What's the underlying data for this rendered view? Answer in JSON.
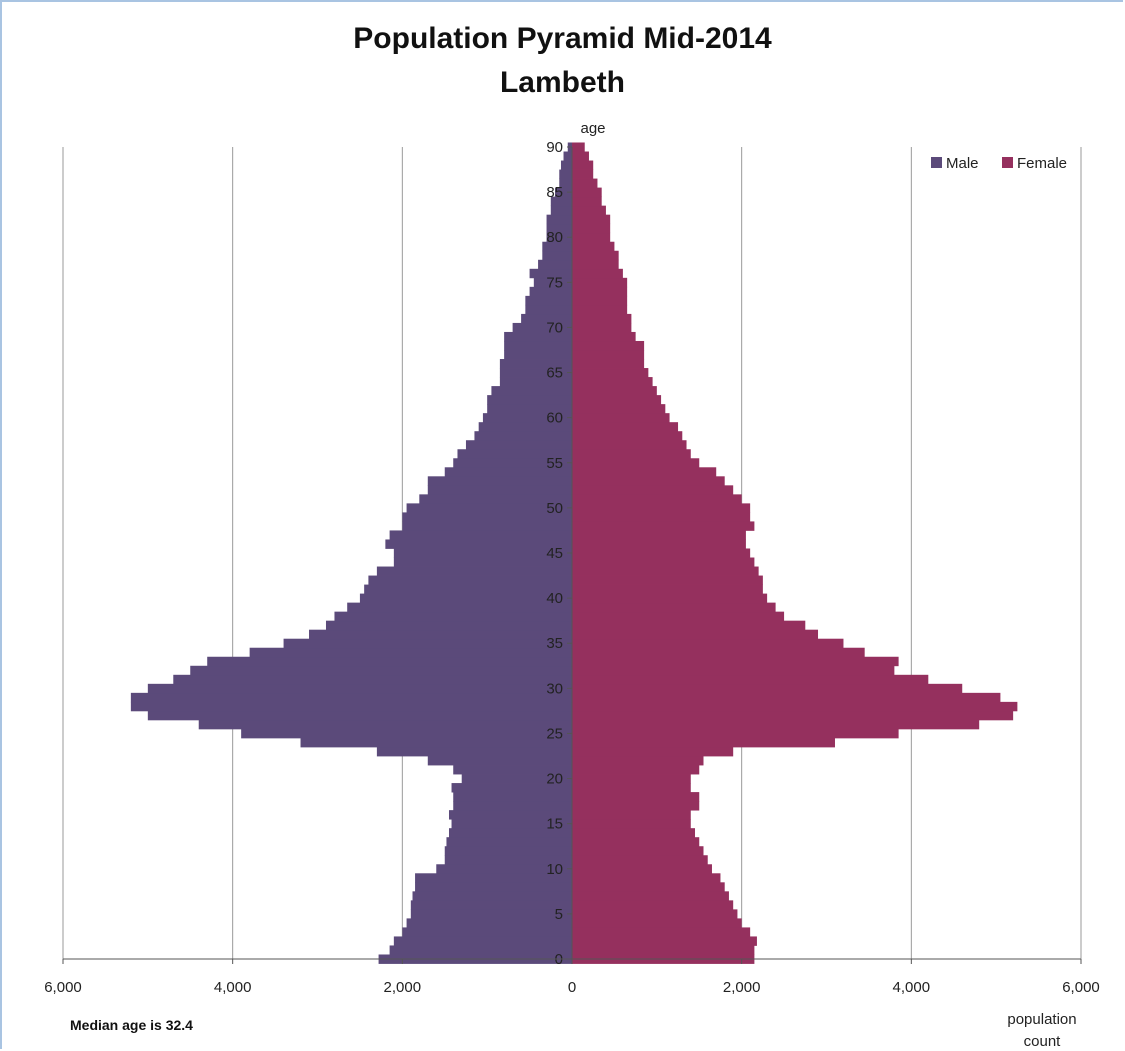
{
  "chart_data": {
    "type": "bar",
    "orientation": "horizontal-population-pyramid",
    "title": "Population Pyramid Mid-2014",
    "subtitle": "Lambeth",
    "ylabel": "age",
    "xlabel": "population count",
    "xlabel_lines": [
      "population",
      "count"
    ],
    "xlim": [
      -6000,
      6000
    ],
    "ylim": [
      0,
      90
    ],
    "x_ticks": [
      -6000,
      -4000,
      -2000,
      0,
      2000,
      4000,
      6000
    ],
    "x_tick_labels": [
      "6,000",
      "4,000",
      "2,000",
      "0",
      "2,000",
      "4,000",
      "6,000"
    ],
    "y_ticks": [
      0,
      5,
      10,
      15,
      20,
      25,
      30,
      35,
      40,
      45,
      50,
      55,
      60,
      65,
      70,
      75,
      80,
      85,
      90
    ],
    "grid": "vertical",
    "legend_position": "top-right",
    "annotation": "Median age is 32.4",
    "ages": [
      0,
      1,
      2,
      3,
      4,
      5,
      6,
      7,
      8,
      9,
      10,
      11,
      12,
      13,
      14,
      15,
      16,
      17,
      18,
      19,
      20,
      21,
      22,
      23,
      24,
      25,
      26,
      27,
      28,
      29,
      30,
      31,
      32,
      33,
      34,
      35,
      36,
      37,
      38,
      39,
      40,
      41,
      42,
      43,
      44,
      45,
      46,
      47,
      48,
      49,
      50,
      51,
      52,
      53,
      54,
      55,
      56,
      57,
      58,
      59,
      60,
      61,
      62,
      63,
      64,
      65,
      66,
      67,
      68,
      69,
      70,
      71,
      72,
      73,
      74,
      75,
      76,
      77,
      78,
      79,
      80,
      81,
      82,
      83,
      84,
      85,
      86,
      87,
      88,
      89,
      90
    ],
    "series": [
      {
        "name": "Male",
        "color": "#5b4a7a",
        "values": [
          2280,
          2150,
          2100,
          2000,
          1950,
          1900,
          1900,
          1880,
          1850,
          1850,
          1600,
          1500,
          1500,
          1480,
          1450,
          1420,
          1450,
          1400,
          1400,
          1420,
          1300,
          1400,
          1700,
          2300,
          3200,
          3900,
          4400,
          5000,
          5200,
          5200,
          5000,
          4700,
          4500,
          4300,
          3800,
          3400,
          3100,
          2900,
          2800,
          2650,
          2500,
          2450,
          2400,
          2300,
          2100,
          2100,
          2200,
          2150,
          2000,
          2000,
          1950,
          1800,
          1700,
          1700,
          1500,
          1400,
          1350,
          1250,
          1150,
          1100,
          1050,
          1000,
          1000,
          950,
          850,
          850,
          850,
          800,
          800,
          800,
          700,
          600,
          550,
          550,
          500,
          450,
          500,
          400,
          350,
          350,
          300,
          300,
          300,
          250,
          250,
          200,
          150,
          150,
          130,
          100,
          50
        ]
      },
      {
        "name": "Female",
        "color": "#95305e",
        "values": [
          2150,
          2150,
          2180,
          2100,
          2000,
          1950,
          1900,
          1850,
          1800,
          1750,
          1650,
          1600,
          1550,
          1500,
          1450,
          1400,
          1400,
          1500,
          1500,
          1400,
          1400,
          1500,
          1550,
          1900,
          3100,
          3850,
          4800,
          5200,
          5250,
          5050,
          4600,
          4200,
          3800,
          3850,
          3450,
          3200,
          2900,
          2750,
          2500,
          2400,
          2300,
          2250,
          2250,
          2200,
          2150,
          2100,
          2050,
          2050,
          2150,
          2100,
          2100,
          2000,
          1900,
          1800,
          1700,
          1500,
          1400,
          1350,
          1300,
          1250,
          1150,
          1100,
          1050,
          1000,
          950,
          900,
          850,
          850,
          850,
          750,
          700,
          700,
          650,
          650,
          650,
          650,
          600,
          550,
          550,
          500,
          450,
          450,
          450,
          400,
          350,
          350,
          300,
          250,
          250,
          200,
          150
        ]
      }
    ]
  }
}
